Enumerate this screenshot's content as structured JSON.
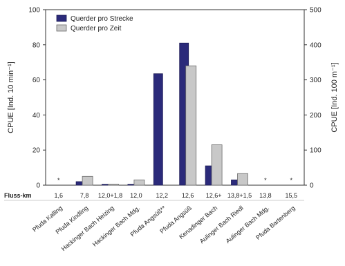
{
  "chart_data": {
    "type": "bar",
    "categories": [
      "Pfuda Kalling",
      "Pfuda Kindling",
      "Hackinger Bach Heizing",
      "Hackinger Bach Mdg.",
      "Pfuda Angsüß**",
      "Pfuda Angsüß",
      "Kenadinger Bach",
      "Aulinger Bach Riedl",
      "Aulinger Bach Mdg.",
      "Pfuda Bartenberg"
    ],
    "fluss_km_label": "Fluss-km",
    "fluss_km": [
      "1,6",
      "7,8",
      "12,0+1,8",
      "12,0",
      "12,2",
      "12,6",
      "12,6+",
      "13,8+1,5",
      "13,8",
      "15,5"
    ],
    "series": [
      {
        "name": "Querder pro Strecke",
        "color": "#2b2a7a",
        "axis": "left",
        "values": [
          0,
          2,
          0.5,
          0.5,
          63.5,
          81,
          11,
          3,
          0,
          0
        ]
      },
      {
        "name": "Querder pro Zeit",
        "color": "#c8c8c8",
        "axis": "right",
        "values": [
          0,
          25,
          3,
          15,
          0,
          340,
          115,
          33,
          0,
          0
        ]
      }
    ],
    "no_catch_marker": "*",
    "no_catch_indices": [
      0,
      8,
      9
    ],
    "y_left": {
      "label": "CPUE [Ind. 10 min⁻¹]",
      "ticks": [
        0,
        20,
        40,
        60,
        80,
        100
      ],
      "range": [
        0,
        100
      ]
    },
    "y_right": {
      "label": "CPUE [Ind. 100 m⁻¹]",
      "ticks": [
        0,
        100,
        200,
        300,
        400,
        500
      ],
      "range": [
        0,
        500
      ]
    },
    "legend_position": "top-left"
  }
}
